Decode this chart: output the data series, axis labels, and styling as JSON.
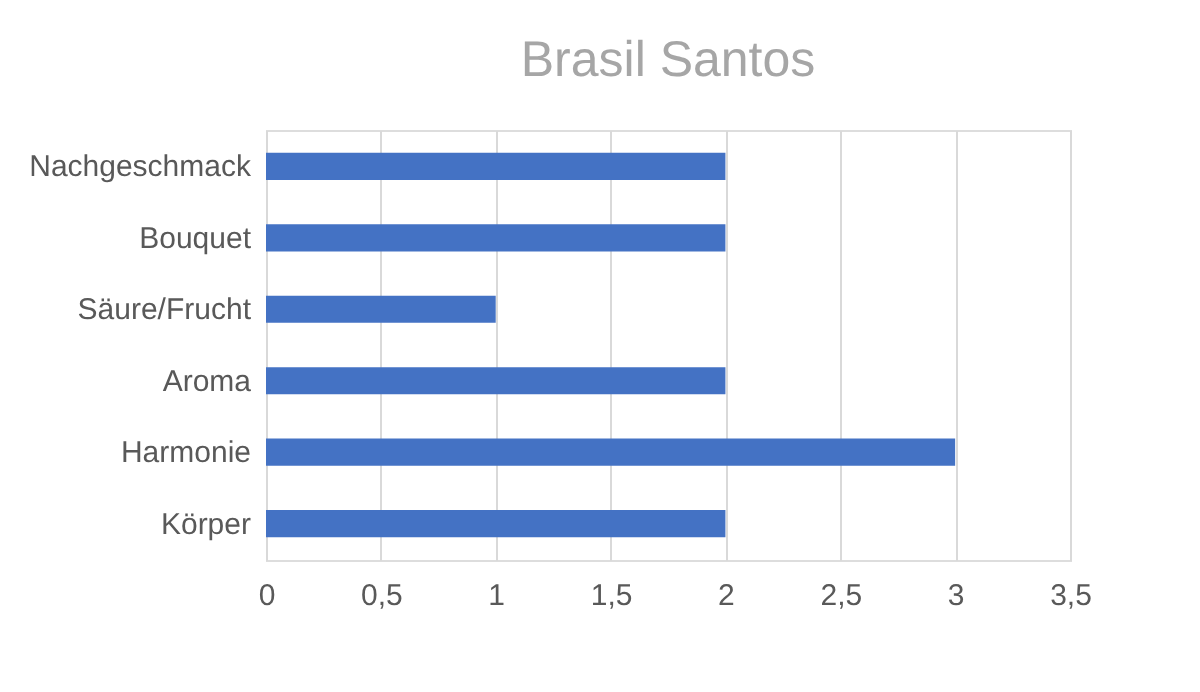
{
  "chart_data": {
    "type": "bar",
    "title": "Brasil Santos",
    "orientation": "horizontal",
    "categories": [
      "Nachgeschmack",
      "Bouquet",
      "Säure/Frucht",
      "Aroma",
      "Harmonie",
      "Körper"
    ],
    "values": [
      2,
      2,
      1,
      2,
      3,
      2
    ],
    "color": "#4472c4",
    "xlim": [
      0,
      3.5
    ],
    "xticks": [
      0,
      {
        "value": 0.5,
        "label": "0,5"
      },
      1,
      {
        "value": 1.5,
        "label": "1,5"
      },
      2,
      {
        "value": 2.5,
        "label": "2,5"
      },
      3,
      {
        "value": 3.5,
        "label": "3,5"
      }
    ],
    "grid": "x"
  }
}
